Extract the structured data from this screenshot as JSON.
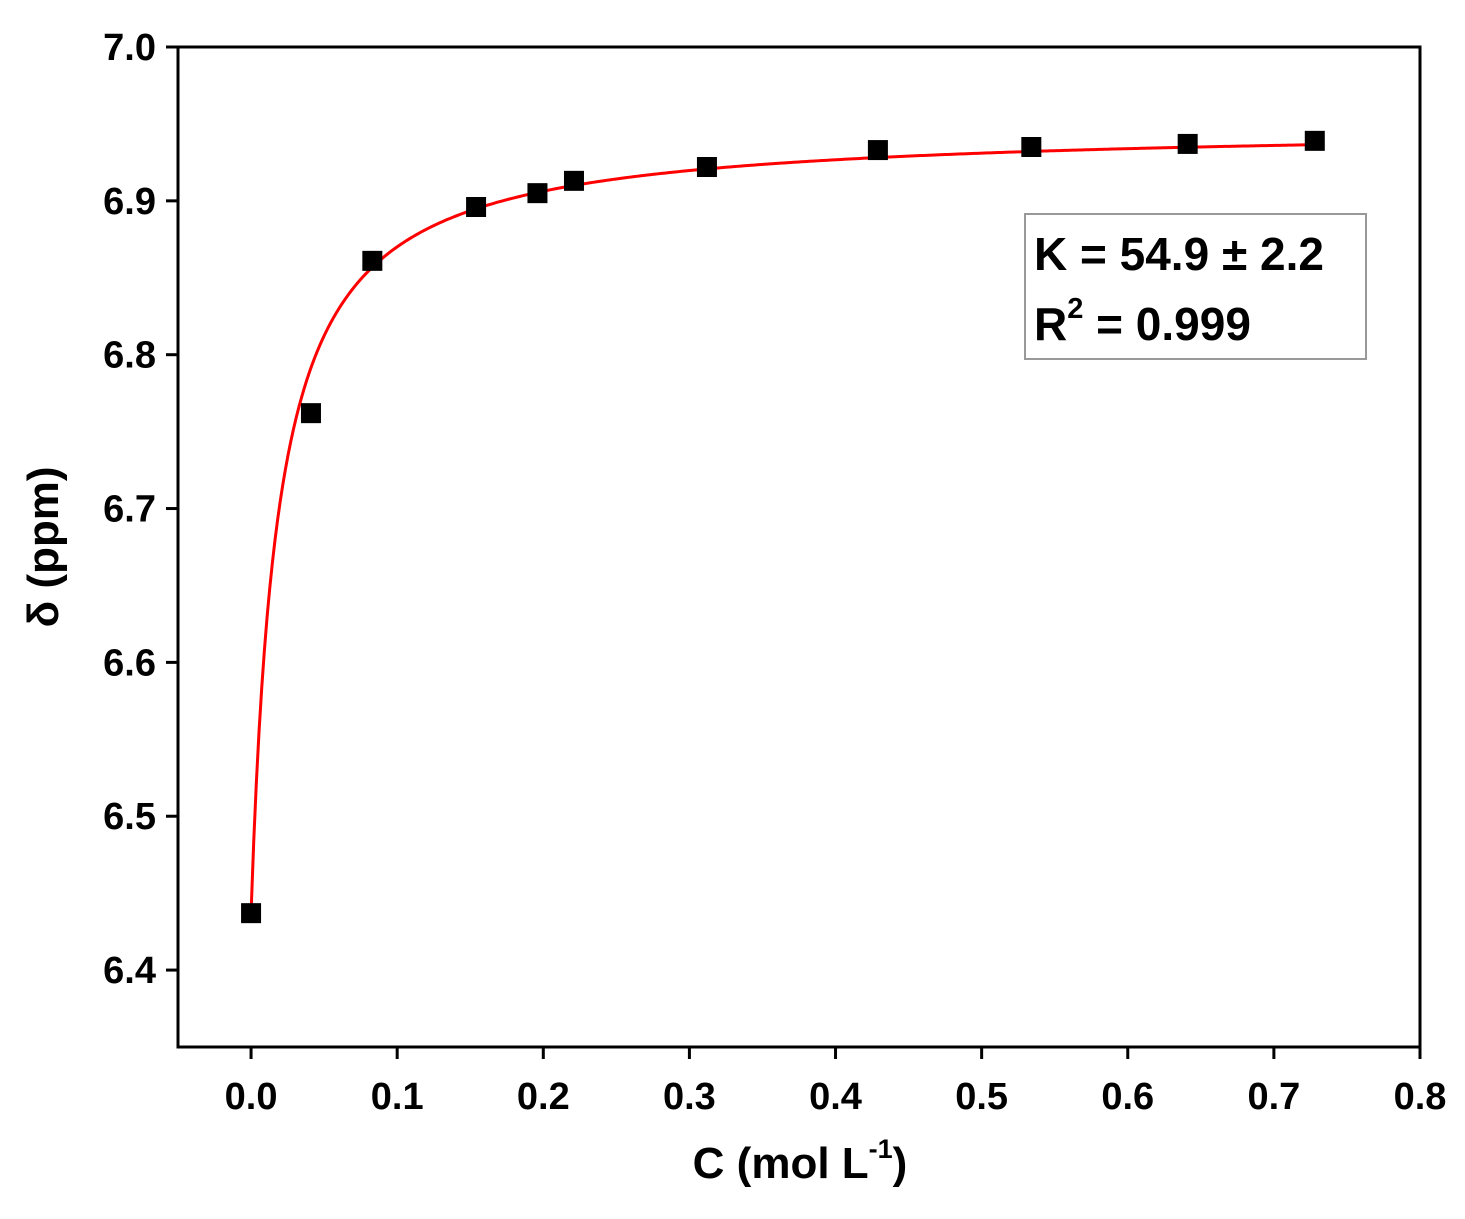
{
  "chart_data": {
    "type": "scatter",
    "xlabel": "C (mol L",
    "xlabel_sup": "-1",
    "xlabel_close": ")",
    "ylabel": "δ (ppm)",
    "xlim": [
      -0.05,
      0.8
    ],
    "ylim": [
      6.35,
      7.0
    ],
    "x_ticks": [
      0.0,
      0.1,
      0.2,
      0.3,
      0.4,
      0.5,
      0.6,
      0.7,
      0.8
    ],
    "x_tick_labels": [
      "0.0",
      "0.1",
      "0.2",
      "0.3",
      "0.4",
      "0.5",
      "0.6",
      "0.7",
      "0.8"
    ],
    "y_ticks": [
      6.4,
      6.5,
      6.6,
      6.7,
      6.8,
      6.9,
      7.0
    ],
    "y_tick_labels": [
      "6.4",
      "6.5",
      "6.6",
      "6.7",
      "6.8",
      "6.9",
      "7.0"
    ],
    "grid": false,
    "series": [
      {
        "kind": "points",
        "marker": "square",
        "color": "#000000",
        "x": [
          0.0,
          0.041,
          0.083,
          0.154,
          0.196,
          0.221,
          0.312,
          0.429,
          0.534,
          0.641,
          0.728
        ],
        "y": [
          6.437,
          6.762,
          6.861,
          6.896,
          6.905,
          6.913,
          6.922,
          6.933,
          6.935,
          6.937,
          6.939
        ]
      },
      {
        "kind": "fit",
        "color": "#ff0000",
        "model": "delta = d0 + dmax*K*C/(1+K*C)",
        "params": {
          "d0": 6.437,
          "dmax": 0.512,
          "K": 54.9
        },
        "x_range": [
          0.0,
          0.728
        ]
      }
    ],
    "annotation": {
      "line1": "K = 54.9 ± 2.2",
      "line2_prefix": "R",
      "line2_sup": "2",
      "line2_suffix": " = 0.999",
      "placement": "top-right"
    }
  }
}
